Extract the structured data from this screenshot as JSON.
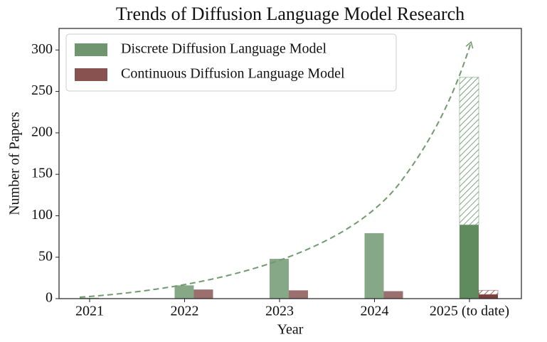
{
  "chart_data": {
    "type": "bar",
    "title": "Trends of Diffusion Language Model Research",
    "x_label": "Year",
    "y_label": "Number of Papers",
    "categories": [
      "2021",
      "2022",
      "2023",
      "2024",
      "2025 (to date)"
    ],
    "series": [
      {
        "name": "Discrete Diffusion Language Model",
        "color": "#5f8b5f",
        "values": [
          1,
          16,
          48,
          79,
          89
        ],
        "projected": [
          null,
          null,
          null,
          null,
          178
        ]
      },
      {
        "name": "Continuous Diffusion Language Model",
        "color": "#7a3f3c",
        "values": [
          0,
          11,
          10,
          9,
          5
        ],
        "projected": [
          null,
          null,
          null,
          null,
          5
        ]
      }
    ],
    "opacity": [
      0.75,
      0.75,
      0.75,
      0.75,
      1
    ],
    "ylim": [
      0,
      326
    ],
    "yticks": [
      0,
      50,
      100,
      150,
      200,
      250,
      300
    ],
    "grid": false,
    "legend": "upper left"
  }
}
